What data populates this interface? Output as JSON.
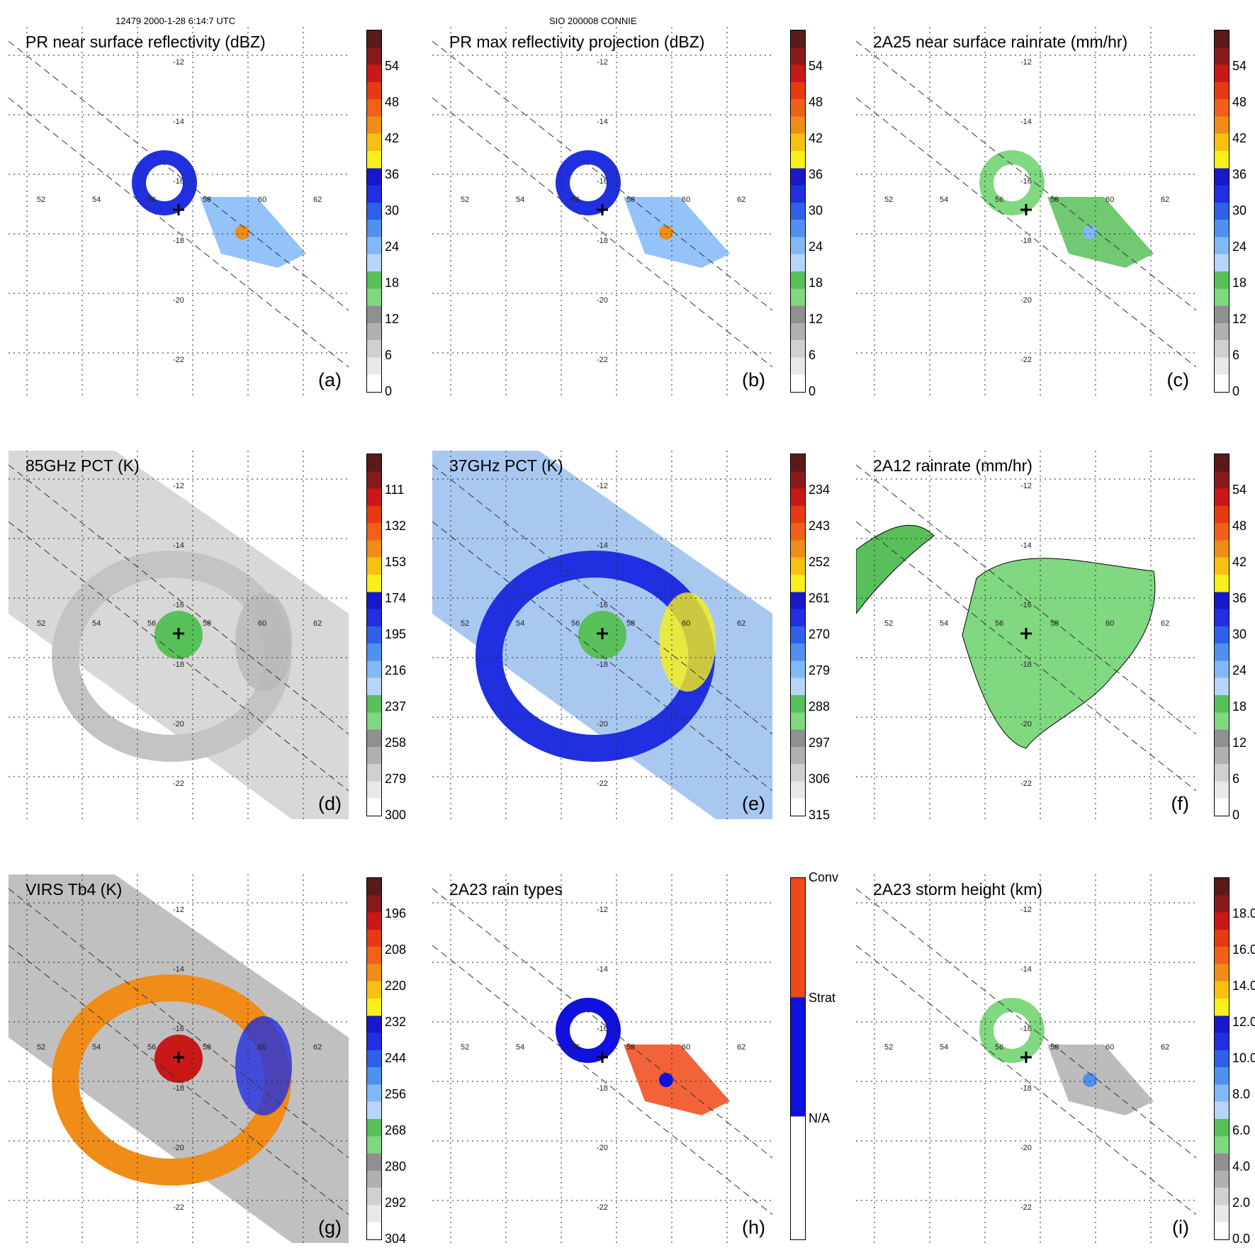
{
  "header": {
    "orbit_time": "12479 2000-1-28 6:14:7 UTC",
    "storm": "SIO 200008 CONNIE"
  },
  "lat_labels": [
    "-12",
    "-14",
    "-16",
    "-18",
    "-20",
    "-22"
  ],
  "lon_labels": [
    "52",
    "54",
    "56",
    "58",
    "60",
    "62"
  ],
  "panels": [
    {
      "title": "PR near surface reflectivity (dBZ)",
      "label": "(a)",
      "ticks": [
        "54",
        "48",
        "42",
        "36",
        "30",
        "24",
        "18",
        "12",
        "6",
        "0"
      ]
    },
    {
      "title": "PR max reflectivity projection (dBZ)",
      "label": "(b)",
      "ticks": [
        "54",
        "48",
        "42",
        "36",
        "30",
        "24",
        "18",
        "12",
        "6",
        "0"
      ]
    },
    {
      "title": "2A25 near surface rainrate (mm/hr)",
      "label": "(c)",
      "ticks": [
        "54",
        "48",
        "42",
        "36",
        "30",
        "24",
        "18",
        "12",
        "6",
        "0"
      ]
    },
    {
      "title": "85GHz PCT (K)",
      "label": "(d)",
      "ticks": [
        "111",
        "132",
        "153",
        "174",
        "195",
        "216",
        "237",
        "258",
        "279",
        "300"
      ]
    },
    {
      "title": "37GHz PCT (K)",
      "label": "(e)",
      "ticks": [
        "234",
        "243",
        "252",
        "261",
        "270",
        "279",
        "288",
        "297",
        "306",
        "315"
      ]
    },
    {
      "title": "2A12 rainrate (mm/hr)",
      "label": "(f)",
      "ticks": [
        "54",
        "48",
        "42",
        "36",
        "30",
        "24",
        "18",
        "12",
        "6",
        "0"
      ]
    },
    {
      "title": "VIRS Tb4 (K)",
      "label": "(g)",
      "ticks": [
        "196",
        "208",
        "220",
        "232",
        "244",
        "256",
        "268",
        "280",
        "292",
        "304"
      ]
    },
    {
      "title": "2A23 rain types",
      "label": "(h)",
      "ticks": [
        "Conv",
        "Strat",
        "N/A"
      ]
    },
    {
      "title": "2A23 storm height (km)",
      "label": "(i)",
      "ticks": [
        "18.0",
        "16.0",
        "14.0",
        "12.0",
        "10.0",
        "8.0",
        "6.0",
        "4.0",
        "2.0",
        "0.0"
      ]
    }
  ],
  "colors": {
    "scale_top_to_bottom": [
      "#5a1a1a",
      "#8a1a1a",
      "#c81818",
      "#e83a10",
      "#f06018",
      "#f08c18",
      "#f8c010",
      "#f8f018",
      "#1818c8",
      "#2030e0",
      "#3060e8",
      "#5090f0",
      "#80b8f8",
      "#b8d4f8",
      "#58c058",
      "#80d880",
      "#909090",
      "#b0b0b0",
      "#d0d0d0",
      "#e8e8e8",
      "#ffffff"
    ],
    "rain_types": [
      "#f04818",
      "#1010e0",
      "#ffffff"
    ]
  }
}
